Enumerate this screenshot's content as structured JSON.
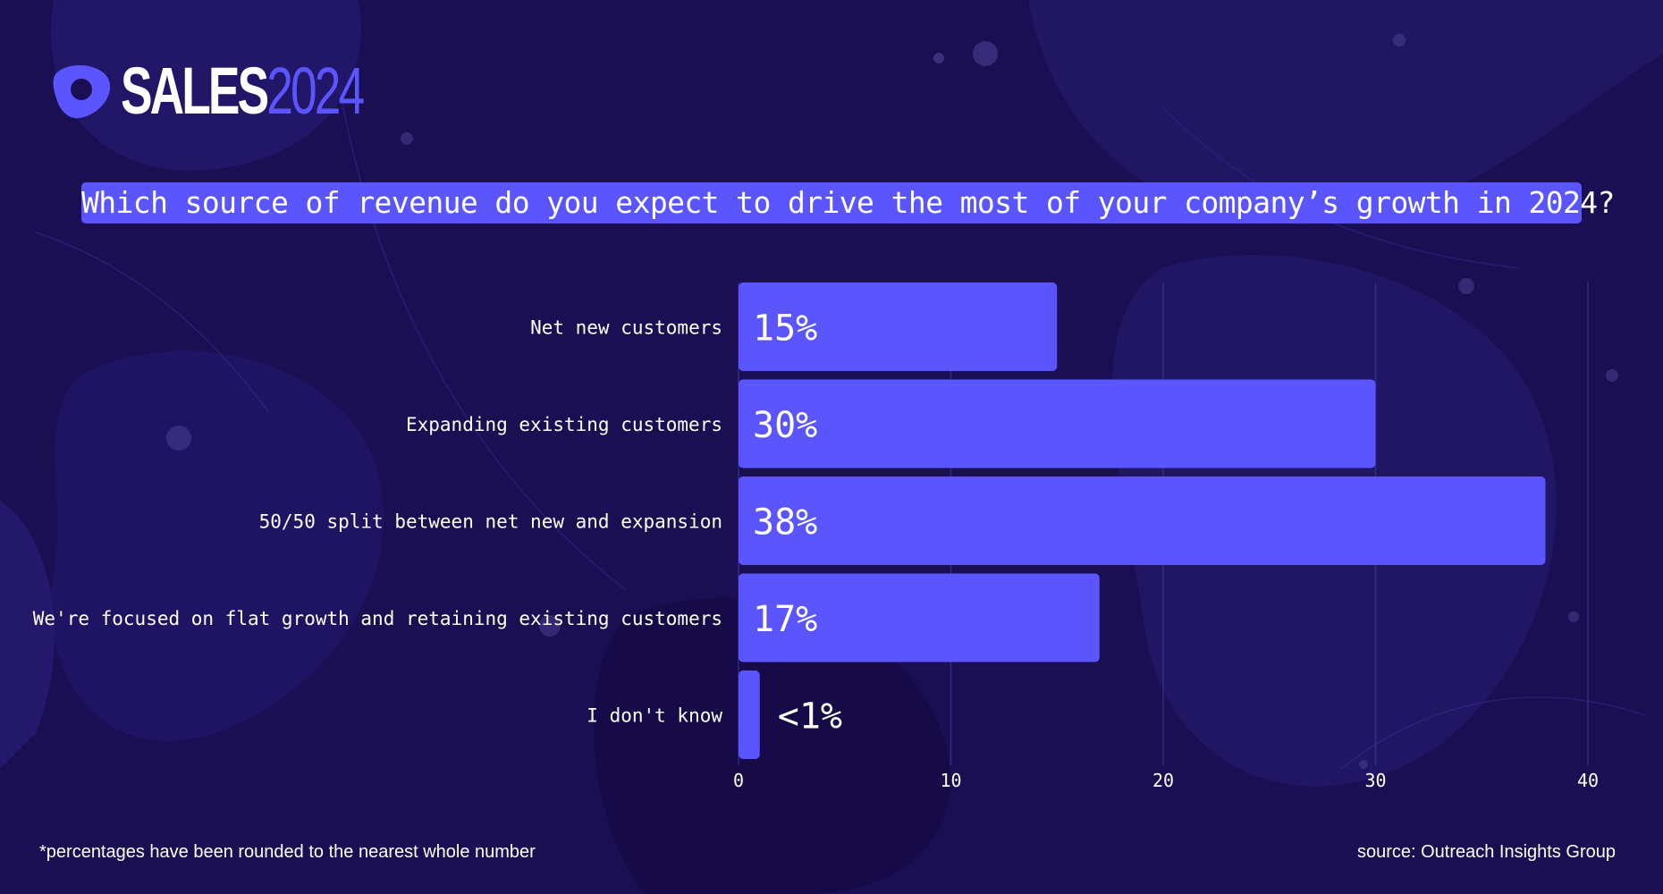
{
  "brand": {
    "word1": "SALES",
    "word2": "2024",
    "accent": "#5b55ff"
  },
  "colors": {
    "background": "#1a0f52",
    "bar": "#5b55ff",
    "grid": "#3a3190",
    "text": "#ffffff"
  },
  "chart_data": {
    "type": "bar",
    "orientation": "horizontal",
    "title": "Which source of revenue do you expect to drive the most of your company’s growth in 2024?",
    "categories": [
      "Net new customers",
      "Expanding existing customers",
      "50/50 split between net new and expansion",
      "We're focused on flat growth and retaining existing customers",
      "I don't know"
    ],
    "values": [
      15,
      30,
      38,
      17,
      1
    ],
    "data_labels": [
      "15%",
      "30%",
      "38%",
      "17%",
      "<1%"
    ],
    "xlim": [
      0,
      40
    ],
    "xticks": [
      0,
      10,
      20,
      30,
      40
    ],
    "xlabel": "",
    "ylabel": "",
    "grid": true
  },
  "footnote": "*percentages have been rounded to the nearest whole number",
  "source": "source: Outreach Insights Group"
}
